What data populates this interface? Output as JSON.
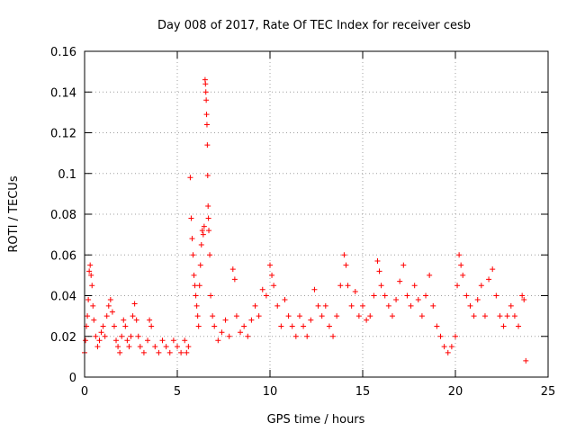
{
  "chart_data": {
    "type": "scatter",
    "title": "Day 008 of 2017, Rate Of TEC Index for receiver cesb",
    "xlabel": "GPS time / hours",
    "ylabel": "ROTI / TECUs",
    "xlim": [
      0,
      25
    ],
    "ylim": [
      0,
      0.16
    ],
    "xticks": [
      0,
      5,
      10,
      15,
      20,
      25
    ],
    "yticks": [
      0,
      0.02,
      0.04,
      0.06,
      0.08,
      0.1,
      0.12,
      0.14,
      0.16
    ],
    "xtick_labels": [
      "0",
      "5",
      "10",
      "15",
      "20",
      "25"
    ],
    "ytick_labels": [
      "0",
      "0.02",
      "0.04",
      "0.06",
      "0.08",
      "0.1",
      "0.12",
      "0.14",
      "0.16"
    ],
    "grid": true,
    "marker": "+",
    "color": "#ff0000",
    "series": [
      {
        "name": "ROTI",
        "points": [
          [
            0.0,
            0.012
          ],
          [
            0.05,
            0.018
          ],
          [
            0.1,
            0.025
          ],
          [
            0.15,
            0.03
          ],
          [
            0.2,
            0.038
          ],
          [
            0.25,
            0.052
          ],
          [
            0.3,
            0.055
          ],
          [
            0.35,
            0.05
          ],
          [
            0.4,
            0.045
          ],
          [
            0.45,
            0.035
          ],
          [
            0.5,
            0.028
          ],
          [
            0.6,
            0.02
          ],
          [
            0.7,
            0.015
          ],
          [
            0.8,
            0.018
          ],
          [
            0.9,
            0.022
          ],
          [
            1.0,
            0.025
          ],
          [
            1.1,
            0.02
          ],
          [
            1.2,
            0.03
          ],
          [
            1.3,
            0.035
          ],
          [
            1.4,
            0.038
          ],
          [
            1.5,
            0.032
          ],
          [
            1.6,
            0.025
          ],
          [
            1.7,
            0.018
          ],
          [
            1.8,
            0.015
          ],
          [
            1.9,
            0.012
          ],
          [
            2.0,
            0.02
          ],
          [
            2.1,
            0.028
          ],
          [
            2.2,
            0.025
          ],
          [
            2.3,
            0.018
          ],
          [
            2.4,
            0.015
          ],
          [
            2.5,
            0.02
          ],
          [
            2.6,
            0.03
          ],
          [
            2.7,
            0.036
          ],
          [
            2.8,
            0.028
          ],
          [
            2.9,
            0.02
          ],
          [
            3.0,
            0.015
          ],
          [
            3.2,
            0.012
          ],
          [
            3.4,
            0.018
          ],
          [
            3.5,
            0.028
          ],
          [
            3.6,
            0.025
          ],
          [
            3.8,
            0.015
          ],
          [
            4.0,
            0.012
          ],
          [
            4.2,
            0.018
          ],
          [
            4.4,
            0.015
          ],
          [
            4.6,
            0.012
          ],
          [
            4.8,
            0.018
          ],
          [
            5.0,
            0.015
          ],
          [
            5.2,
            0.012
          ],
          [
            5.4,
            0.018
          ],
          [
            5.5,
            0.012
          ],
          [
            5.6,
            0.015
          ],
          [
            5.7,
            0.098
          ],
          [
            5.75,
            0.078
          ],
          [
            5.8,
            0.068
          ],
          [
            5.85,
            0.06
          ],
          [
            5.9,
            0.05
          ],
          [
            5.95,
            0.045
          ],
          [
            6.0,
            0.04
          ],
          [
            6.05,
            0.035
          ],
          [
            6.1,
            0.03
          ],
          [
            6.15,
            0.025
          ],
          [
            6.2,
            0.045
          ],
          [
            6.25,
            0.055
          ],
          [
            6.3,
            0.065
          ],
          [
            6.35,
            0.072
          ],
          [
            6.4,
            0.07
          ],
          [
            6.45,
            0.074
          ],
          [
            6.5,
            0.146
          ],
          [
            6.52,
            0.144
          ],
          [
            6.54,
            0.14
          ],
          [
            6.56,
            0.136
          ],
          [
            6.58,
            0.129
          ],
          [
            6.6,
            0.124
          ],
          [
            6.62,
            0.114
          ],
          [
            6.64,
            0.099
          ],
          [
            6.66,
            0.084
          ],
          [
            6.68,
            0.078
          ],
          [
            6.7,
            0.072
          ],
          [
            6.75,
            0.06
          ],
          [
            6.8,
            0.04
          ],
          [
            6.9,
            0.03
          ],
          [
            7.0,
            0.025
          ],
          [
            7.2,
            0.018
          ],
          [
            7.4,
            0.022
          ],
          [
            7.6,
            0.028
          ],
          [
            7.8,
            0.02
          ],
          [
            8.0,
            0.053
          ],
          [
            8.1,
            0.048
          ],
          [
            8.2,
            0.03
          ],
          [
            8.4,
            0.022
          ],
          [
            8.6,
            0.025
          ],
          [
            8.8,
            0.02
          ],
          [
            9.0,
            0.028
          ],
          [
            9.2,
            0.035
          ],
          [
            9.4,
            0.03
          ],
          [
            9.6,
            0.043
          ],
          [
            9.8,
            0.04
          ],
          [
            10.0,
            0.055
          ],
          [
            10.1,
            0.05
          ],
          [
            10.2,
            0.045
          ],
          [
            10.4,
            0.035
          ],
          [
            10.6,
            0.025
          ],
          [
            10.8,
            0.038
          ],
          [
            11.0,
            0.03
          ],
          [
            11.2,
            0.025
          ],
          [
            11.4,
            0.02
          ],
          [
            11.6,
            0.03
          ],
          [
            11.8,
            0.025
          ],
          [
            12.0,
            0.02
          ],
          [
            12.2,
            0.028
          ],
          [
            12.4,
            0.043
          ],
          [
            12.6,
            0.035
          ],
          [
            12.8,
            0.03
          ],
          [
            13.0,
            0.035
          ],
          [
            13.2,
            0.025
          ],
          [
            13.4,
            0.02
          ],
          [
            13.6,
            0.03
          ],
          [
            13.8,
            0.045
          ],
          [
            14.0,
            0.06
          ],
          [
            14.1,
            0.055
          ],
          [
            14.2,
            0.045
          ],
          [
            14.4,
            0.035
          ],
          [
            14.6,
            0.042
          ],
          [
            14.8,
            0.03
          ],
          [
            15.0,
            0.035
          ],
          [
            15.2,
            0.028
          ],
          [
            15.4,
            0.03
          ],
          [
            15.6,
            0.04
          ],
          [
            15.8,
            0.057
          ],
          [
            15.9,
            0.052
          ],
          [
            16.0,
            0.045
          ],
          [
            16.2,
            0.04
          ],
          [
            16.4,
            0.035
          ],
          [
            16.6,
            0.03
          ],
          [
            16.8,
            0.038
          ],
          [
            17.0,
            0.047
          ],
          [
            17.2,
            0.055
          ],
          [
            17.4,
            0.04
          ],
          [
            17.6,
            0.035
          ],
          [
            17.8,
            0.045
          ],
          [
            18.0,
            0.038
          ],
          [
            18.2,
            0.03
          ],
          [
            18.4,
            0.04
          ],
          [
            18.6,
            0.05
          ],
          [
            18.8,
            0.035
          ],
          [
            19.0,
            0.025
          ],
          [
            19.2,
            0.02
          ],
          [
            19.4,
            0.015
          ],
          [
            19.6,
            0.012
          ],
          [
            19.8,
            0.015
          ],
          [
            20.0,
            0.02
          ],
          [
            20.1,
            0.045
          ],
          [
            20.2,
            0.06
          ],
          [
            20.3,
            0.055
          ],
          [
            20.4,
            0.05
          ],
          [
            20.6,
            0.04
          ],
          [
            20.8,
            0.035
          ],
          [
            21.0,
            0.03
          ],
          [
            21.2,
            0.038
          ],
          [
            21.4,
            0.045
          ],
          [
            21.6,
            0.03
          ],
          [
            21.8,
            0.048
          ],
          [
            22.0,
            0.053
          ],
          [
            22.2,
            0.04
          ],
          [
            22.4,
            0.03
          ],
          [
            22.6,
            0.025
          ],
          [
            22.8,
            0.03
          ],
          [
            23.0,
            0.035
          ],
          [
            23.2,
            0.03
          ],
          [
            23.4,
            0.025
          ],
          [
            23.6,
            0.04
          ],
          [
            23.7,
            0.038
          ],
          [
            23.8,
            0.008
          ]
        ]
      }
    ]
  }
}
